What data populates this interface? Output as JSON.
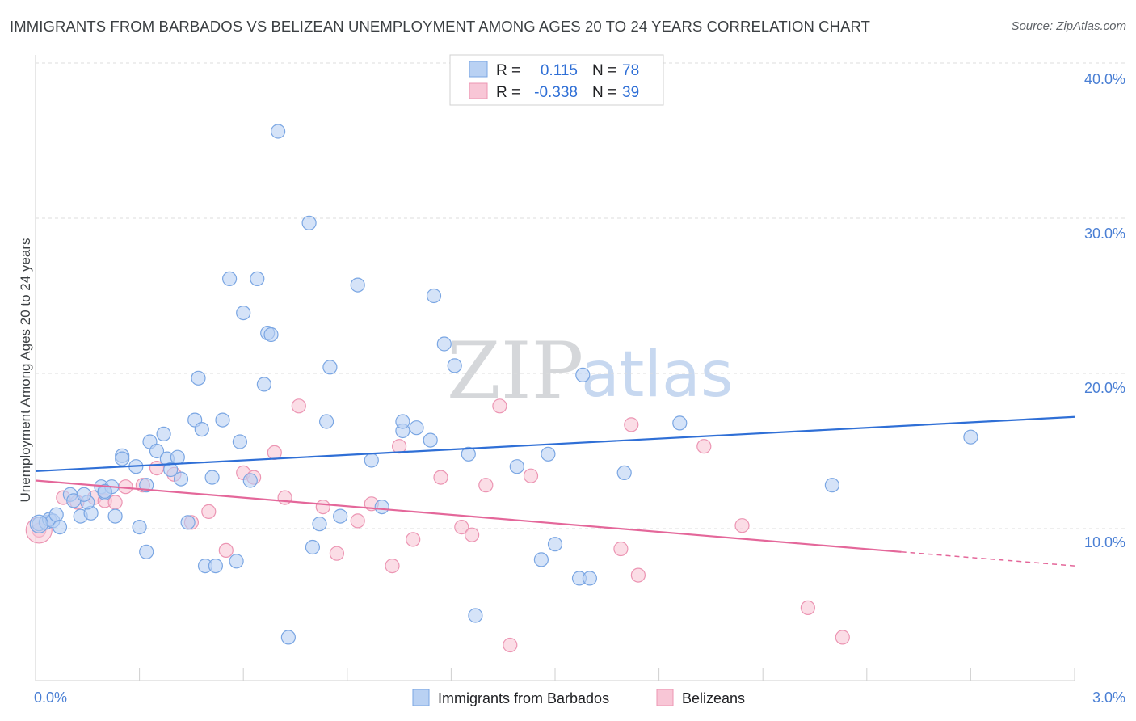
{
  "title": "IMMIGRANTS FROM BARBADOS VS BELIZEAN UNEMPLOYMENT AMONG AGES 20 TO 24 YEARS CORRELATION CHART",
  "source": "Source: ZipAtlas.com",
  "watermark": {
    "zip": "ZIP",
    "atlas": "atlas"
  },
  "legend": {
    "rows": [
      {
        "r_label": "R =",
        "r_value": "0.115",
        "n_label": "N =",
        "n_value": "78"
      },
      {
        "r_label": "R =",
        "r_value": "-0.338",
        "n_label": "N =",
        "n_value": "39"
      }
    ]
  },
  "bottom_legend": {
    "series1": "Immigrants from Barbados",
    "series2": "Belizeans"
  },
  "colors": {
    "blue_fill": "#b9d1f3",
    "blue_stroke": "#7aa6e3",
    "blue_line": "#2f6fd6",
    "pink_fill": "#f8c6d6",
    "pink_stroke": "#ec95b3",
    "pink_line": "#e4679a",
    "grid": "#dcdcdc",
    "axis_text": "#4a7fd4"
  },
  "chart_data": {
    "type": "scatter",
    "title": "IMMIGRANTS FROM BARBADOS VS BELIZEAN UNEMPLOYMENT AMONG AGES 20 TO 24 YEARS CORRELATION CHART",
    "xlabel": "",
    "ylabel": "Unemployment Among Ages 20 to 24 years",
    "xlim": [
      0,
      3.0
    ],
    "ylim": [
      0,
      42
    ],
    "x_tick_labels": [
      "0.0%",
      "3.0%"
    ],
    "y_ticks": [
      10,
      20,
      30,
      40
    ],
    "y_tick_labels": [
      "10.0%",
      "20.0%",
      "30.0%",
      "40.0%"
    ],
    "series": [
      {
        "name": "Immigrants from Barbados",
        "color": "blue",
        "R": 0.115,
        "N": 78,
        "trend": {
          "x0": 0.0,
          "y0": 13.7,
          "x1": 3.0,
          "y1": 17.2
        },
        "points": [
          [
            0.01,
            10.3
          ],
          [
            0.03,
            10.4
          ],
          [
            0.04,
            10.6
          ],
          [
            0.05,
            10.5
          ],
          [
            0.06,
            10.9
          ],
          [
            0.07,
            10.1
          ],
          [
            0.1,
            12.2
          ],
          [
            0.11,
            11.8
          ],
          [
            0.13,
            10.8
          ],
          [
            0.16,
            11.0
          ],
          [
            0.15,
            11.7
          ],
          [
            0.19,
            12.7
          ],
          [
            0.2,
            12.3
          ],
          [
            0.22,
            12.7
          ],
          [
            0.23,
            10.8
          ],
          [
            0.25,
            14.7
          ],
          [
            0.25,
            14.5
          ],
          [
            0.29,
            14.0
          ],
          [
            0.3,
            10.1
          ],
          [
            0.32,
            8.5
          ],
          [
            0.32,
            12.8
          ],
          [
            0.33,
            15.6
          ],
          [
            0.35,
            15.0
          ],
          [
            0.37,
            16.1
          ],
          [
            0.38,
            14.5
          ],
          [
            0.39,
            13.8
          ],
          [
            0.41,
            14.6
          ],
          [
            0.42,
            13.2
          ],
          [
            0.44,
            10.4
          ],
          [
            0.46,
            17.0
          ],
          [
            0.47,
            19.7
          ],
          [
            0.48,
            16.4
          ],
          [
            0.49,
            7.6
          ],
          [
            0.51,
            13.3
          ],
          [
            0.52,
            7.6
          ],
          [
            0.54,
            17.0
          ],
          [
            0.56,
            26.1
          ],
          [
            0.58,
            7.9
          ],
          [
            0.59,
            15.6
          ],
          [
            0.6,
            23.9
          ],
          [
            0.62,
            13.1
          ],
          [
            0.64,
            26.1
          ],
          [
            0.66,
            19.3
          ],
          [
            0.67,
            22.6
          ],
          [
            0.68,
            22.5
          ],
          [
            0.7,
            35.6
          ],
          [
            0.73,
            3.0
          ],
          [
            0.79,
            29.7
          ],
          [
            0.8,
            8.8
          ],
          [
            0.82,
            10.3
          ],
          [
            0.84,
            16.9
          ],
          [
            0.85,
            20.4
          ],
          [
            0.88,
            10.8
          ],
          [
            0.93,
            25.7
          ],
          [
            0.97,
            14.4
          ],
          [
            1.0,
            11.4
          ],
          [
            1.06,
            16.3
          ],
          [
            1.06,
            16.9
          ],
          [
            1.1,
            16.5
          ],
          [
            1.14,
            15.7
          ],
          [
            1.15,
            25.0
          ],
          [
            1.18,
            21.9
          ],
          [
            1.21,
            20.5
          ],
          [
            1.25,
            14.8
          ],
          [
            1.27,
            4.4
          ],
          [
            1.39,
            14.0
          ],
          [
            1.46,
            8.0
          ],
          [
            1.48,
            14.8
          ],
          [
            1.5,
            9.0
          ],
          [
            1.57,
            6.8
          ],
          [
            1.58,
            19.9
          ],
          [
            1.6,
            6.8
          ],
          [
            1.7,
            13.6
          ],
          [
            1.86,
            16.8
          ],
          [
            2.3,
            12.8
          ],
          [
            2.7,
            15.9
          ],
          [
            0.14,
            12.2
          ],
          [
            0.2,
            12.4
          ]
        ]
      },
      {
        "name": "Belizeans",
        "color": "pink",
        "R": -0.338,
        "N": 39,
        "trend": {
          "x0": 0.0,
          "y0": 13.1,
          "x1": 2.5,
          "y1": 8.5,
          "dash_x1": 3.0,
          "dash_y1": 7.6
        },
        "points": [
          [
            0.01,
            9.9
          ],
          [
            0.08,
            12.0
          ],
          [
            0.12,
            11.7
          ],
          [
            0.17,
            12.0
          ],
          [
            0.2,
            11.8
          ],
          [
            0.23,
            11.7
          ],
          [
            0.26,
            12.7
          ],
          [
            0.31,
            12.8
          ],
          [
            0.35,
            13.9
          ],
          [
            0.4,
            13.5
          ],
          [
            0.45,
            10.4
          ],
          [
            0.5,
            11.1
          ],
          [
            0.55,
            8.6
          ],
          [
            0.6,
            13.6
          ],
          [
            0.63,
            13.3
          ],
          [
            0.69,
            14.9
          ],
          [
            0.72,
            12.0
          ],
          [
            0.76,
            17.9
          ],
          [
            0.83,
            11.4
          ],
          [
            0.87,
            8.4
          ],
          [
            0.93,
            10.5
          ],
          [
            0.97,
            11.6
          ],
          [
            1.03,
            7.6
          ],
          [
            1.05,
            15.3
          ],
          [
            1.09,
            9.3
          ],
          [
            1.17,
            13.3
          ],
          [
            1.23,
            10.1
          ],
          [
            1.26,
            9.6
          ],
          [
            1.3,
            12.8
          ],
          [
            1.34,
            17.9
          ],
          [
            1.37,
            2.5
          ],
          [
            1.43,
            13.4
          ],
          [
            1.69,
            8.7
          ],
          [
            1.72,
            16.7
          ],
          [
            1.74,
            7.0
          ],
          [
            1.93,
            15.3
          ],
          [
            2.04,
            10.2
          ],
          [
            2.23,
            4.9
          ],
          [
            2.33,
            3.0
          ]
        ]
      }
    ]
  }
}
